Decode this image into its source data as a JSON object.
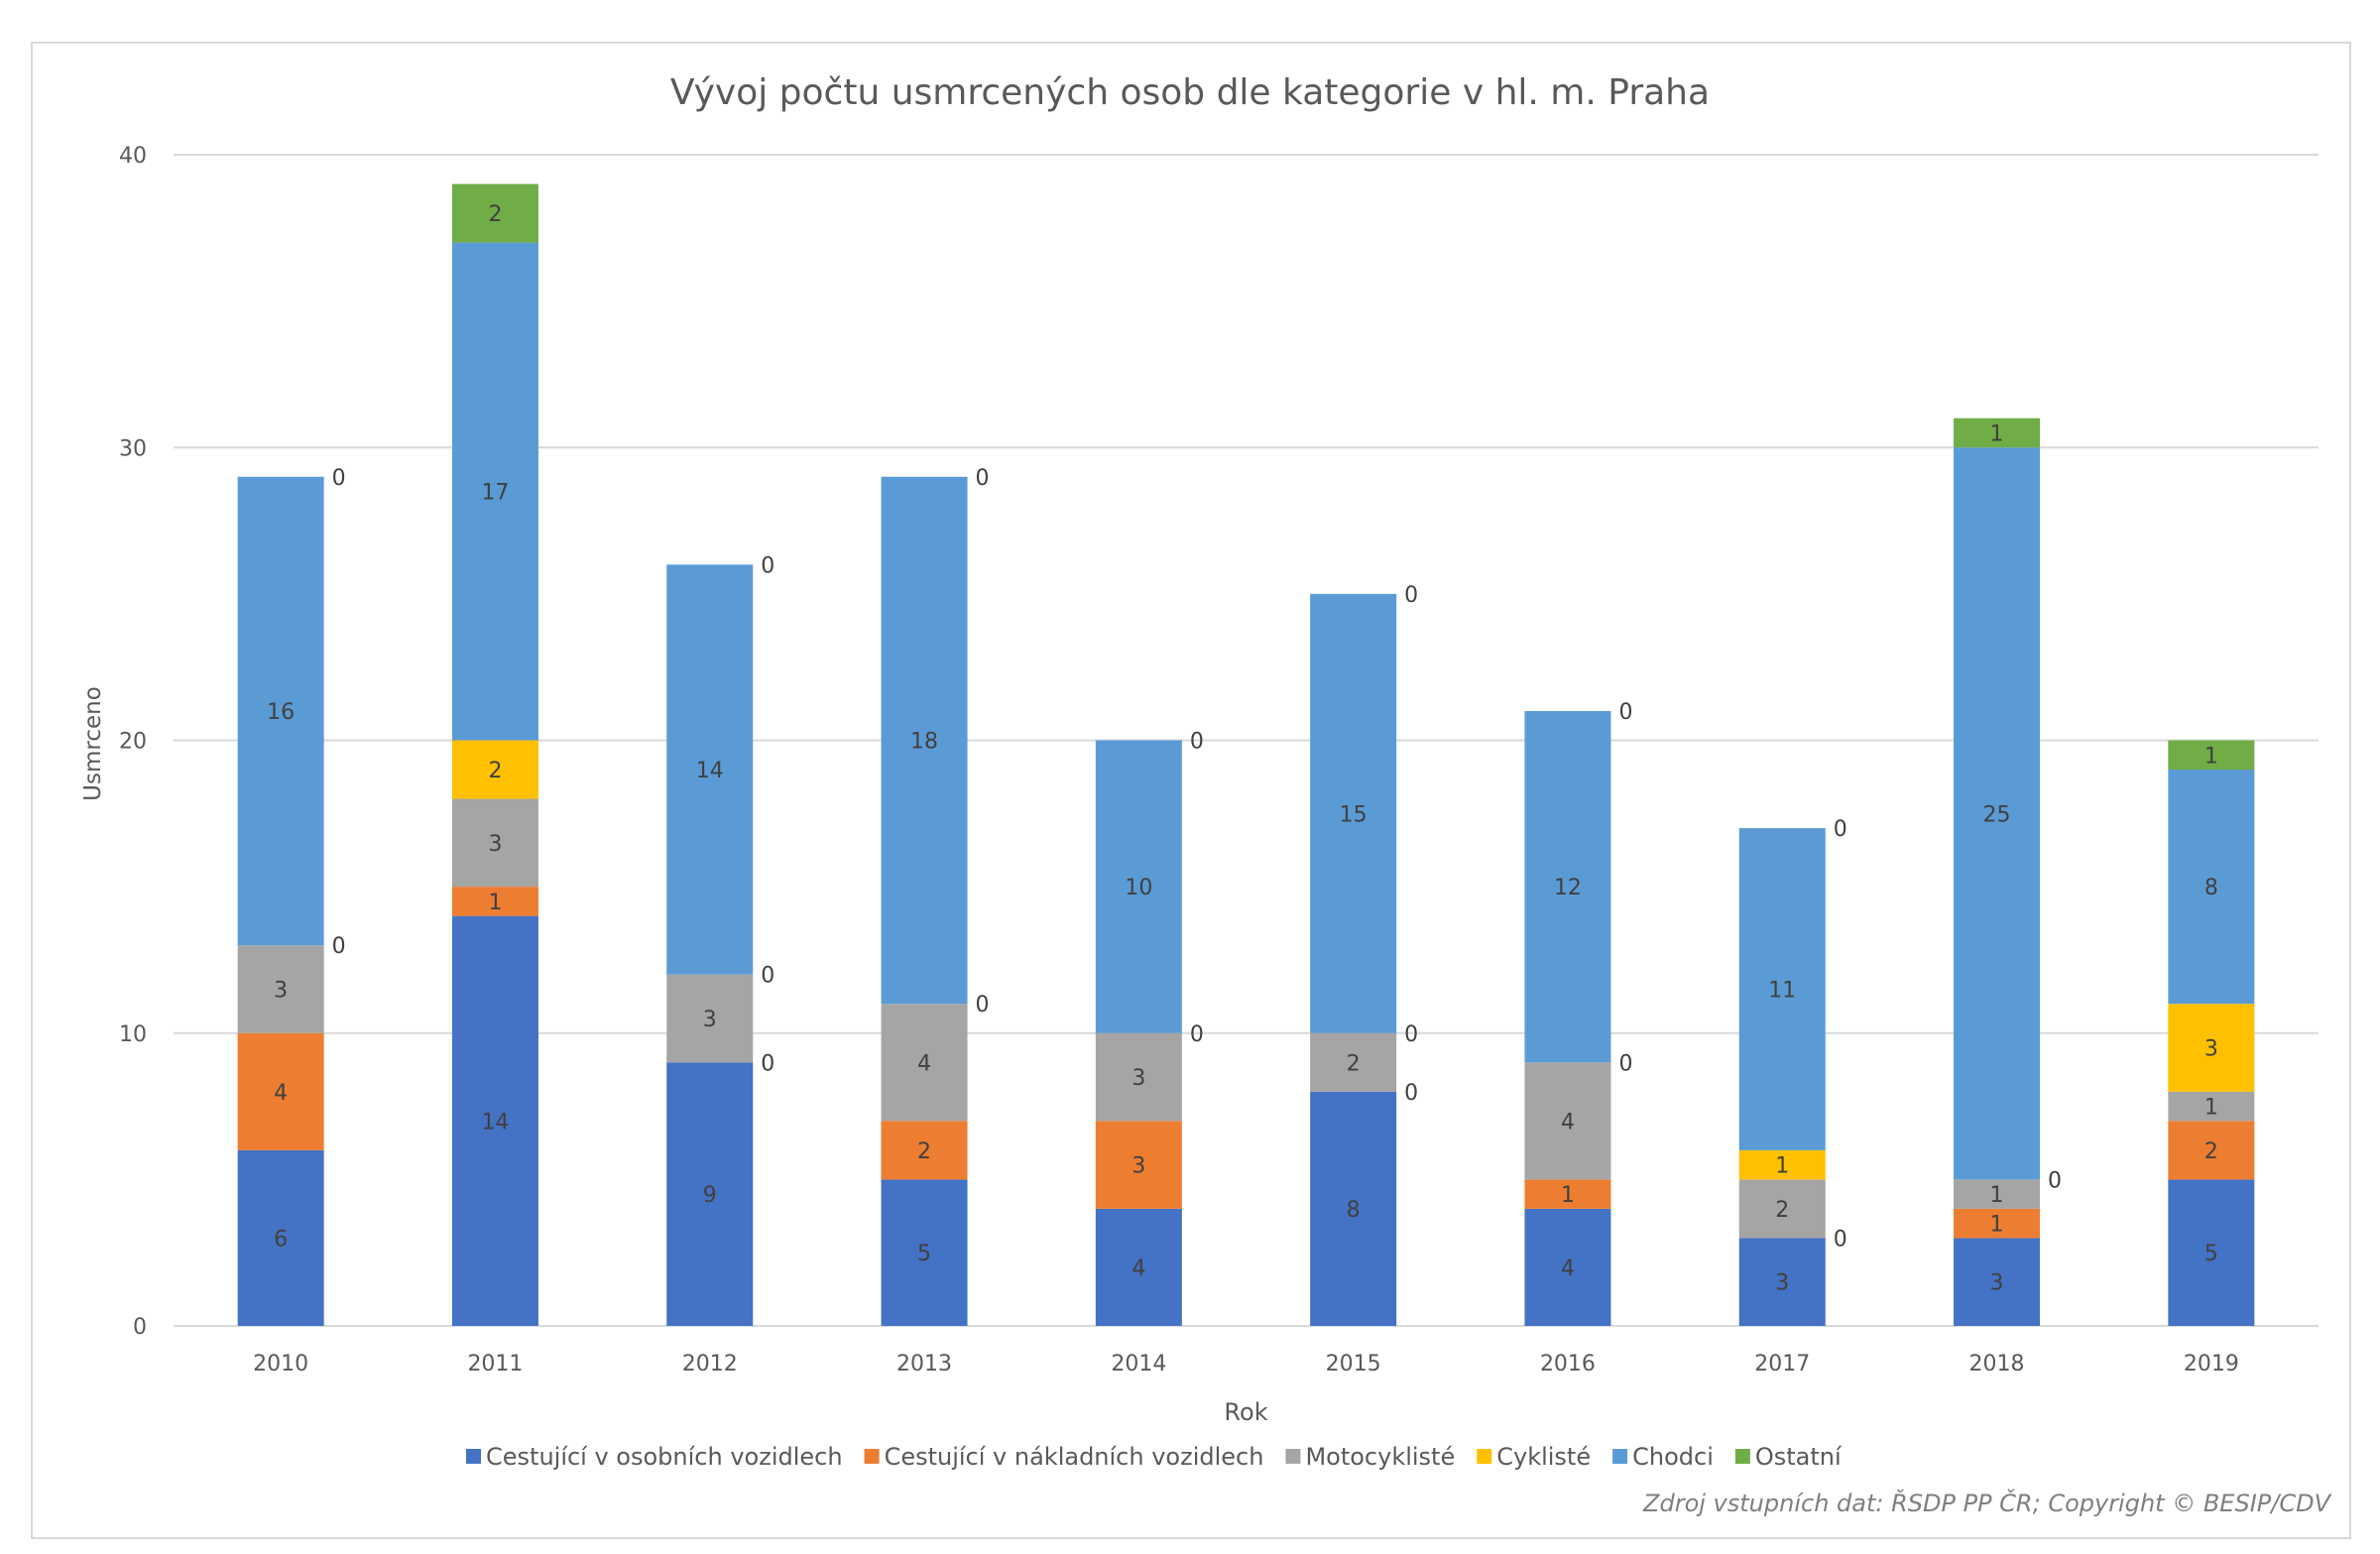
{
  "chart_data": {
    "type": "bar",
    "stacked": true,
    "title": "Vývoj počtu usmrcených osob dle kategorie v hl. m. Praha",
    "xlabel": "Rok",
    "ylabel": "Usmrceno",
    "ylim": [
      0,
      40
    ],
    "yticks": [
      0,
      10,
      20,
      30,
      40
    ],
    "grid": true,
    "legend_position": "bottom",
    "categories": [
      "2010",
      "2011",
      "2012",
      "2013",
      "2014",
      "2015",
      "2016",
      "2017",
      "2018",
      "2019"
    ],
    "series": [
      {
        "name": "Cestující v osobních vozidlech",
        "color": "#4472c4",
        "values": [
          6,
          14,
          9,
          5,
          4,
          8,
          4,
          3,
          3,
          5
        ]
      },
      {
        "name": "Cestující v nákladních vozidlech",
        "color": "#ed7d31",
        "values": [
          4,
          1,
          0,
          2,
          3,
          0,
          1,
          0,
          1,
          2
        ]
      },
      {
        "name": "Motocyklisté",
        "color": "#a5a5a5",
        "values": [
          3,
          3,
          3,
          4,
          3,
          2,
          4,
          2,
          1,
          1
        ]
      },
      {
        "name": "Cyklisté",
        "color": "#ffc000",
        "values": [
          0,
          2,
          0,
          0,
          0,
          0,
          0,
          1,
          0,
          3
        ]
      },
      {
        "name": "Chodci",
        "color": "#5b9bd5",
        "values": [
          16,
          17,
          14,
          18,
          10,
          15,
          12,
          11,
          25,
          8
        ]
      },
      {
        "name": "Ostatní",
        "color": "#70ad47",
        "values": [
          0,
          2,
          0,
          0,
          0,
          0,
          0,
          0,
          1,
          1
        ]
      }
    ]
  },
  "source": "Zdroj vstupních dat: ŘSDP PP ČR; Copyright © BESIP/CDV"
}
